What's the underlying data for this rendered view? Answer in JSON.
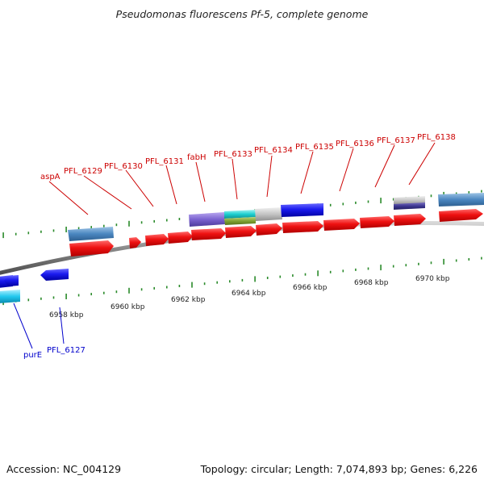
{
  "title": "Pseudomonas fluorescens Pf-5, complete genome",
  "footer": {
    "accession": "Accession: NC_004129",
    "summary": "Topology: circular; Length: 7,074,893 bp; Genes: 6,226"
  },
  "colors": {
    "gene_forward": "#ee1111",
    "gene_reverse": "#1a1aee",
    "label_forward": "#cc0000",
    "label_reverse": "#0000cc",
    "tick": "#2a8a2a",
    "backbone": "#888888"
  },
  "scale": {
    "unit": "kbp",
    "labels": [
      "6958 kbp",
      "6960 kbp",
      "6962 kbp",
      "6964 kbp",
      "6966 kbp",
      "6968 kbp",
      "6970 kbp"
    ]
  },
  "forward_labels": [
    "aspA",
    "PFL_6129",
    "PFL_6130",
    "PFL_6131",
    "fabH",
    "PFL_6133",
    "PFL_6134",
    "PFL_6135",
    "PFL_6136",
    "PFL_6137",
    "PFL_6138"
  ],
  "reverse_labels": [
    "purE",
    "PFL_6127"
  ]
}
